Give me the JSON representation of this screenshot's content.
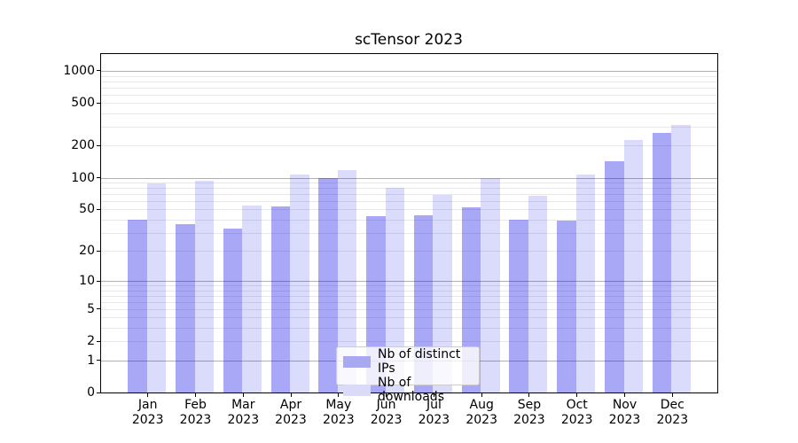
{
  "figure": {
    "background": "#ffffff"
  },
  "chart_data": {
    "type": "bar",
    "title": "scTensor 2023",
    "categories": [
      "Jan 2023",
      "Feb 2023",
      "Mar 2023",
      "Apr 2023",
      "May 2023",
      "Jun 2023",
      "Jul 2023",
      "Aug 2023",
      "Sep 2023",
      "Oct 2023",
      "Nov 2023",
      "Dec 2023"
    ],
    "series": [
      {
        "name": "Nb of distinct IPs",
        "color": "rgba(0,0,230,0.34)",
        "swatch": "#a9a9f1",
        "values": [
          40,
          36,
          33,
          53,
          99,
          43,
          44,
          52,
          40,
          39,
          142,
          265
        ]
      },
      {
        "name": "Nb of downloads",
        "color": "rgba(0,0,230,0.14)",
        "swatch": "#dbdbf9",
        "values": [
          88,
          94,
          54,
          107,
          118,
          80,
          69,
          100,
          67,
          108,
          227,
          312
        ]
      }
    ],
    "xlabel": "",
    "ylabel": "",
    "yscale": "log1p",
    "ylim": [
      0,
      1400
    ],
    "yticks": [
      0,
      1,
      2,
      5,
      10,
      20,
      50,
      100,
      200,
      500,
      1000
    ],
    "grid": {
      "major_values": [
        1,
        10,
        100,
        1000
      ],
      "minor_multipliers": [
        2,
        3,
        4,
        5,
        6,
        7,
        8,
        9
      ],
      "major_color": "#b0b0b0",
      "minor_color": "#e8e8e8",
      "grid_on": true
    },
    "legend": {
      "position": "lower center",
      "labels": [
        "Nb of distinct IPs",
        "Nb of downloads"
      ]
    }
  }
}
